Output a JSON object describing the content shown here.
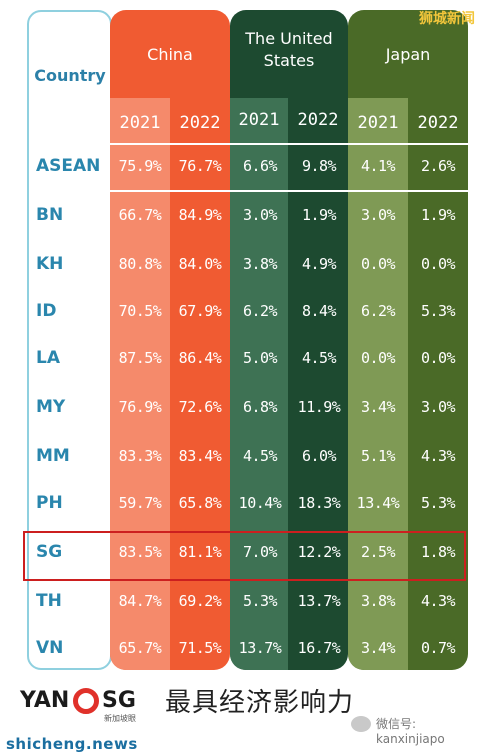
{
  "watermark": "狮城新闻",
  "table": {
    "country_header": "Country",
    "groups": [
      {
        "name_lines": [
          "China"
        ],
        "years": [
          "2021",
          "2022"
        ]
      },
      {
        "name_lines": [
          "The United",
          "States"
        ],
        "years": [
          "2021",
          "2022"
        ]
      },
      {
        "name_lines": [
          "Japan"
        ],
        "years": [
          "2021",
          "2022"
        ]
      }
    ],
    "rows": [
      {
        "country": "ASEAN",
        "values": [
          "75.9%",
          "76.7%",
          "6.6%",
          "9.8%",
          "4.1%",
          "2.6%"
        ]
      },
      {
        "country": "BN",
        "values": [
          "66.7%",
          "84.9%",
          "3.0%",
          "1.9%",
          "3.0%",
          "1.9%"
        ]
      },
      {
        "country": "KH",
        "values": [
          "80.8%",
          "84.0%",
          "3.8%",
          "4.9%",
          "0.0%",
          "0.0%"
        ]
      },
      {
        "country": "ID",
        "values": [
          "70.5%",
          "67.9%",
          "6.2%",
          "8.4%",
          "6.2%",
          "5.3%"
        ]
      },
      {
        "country": "LA",
        "values": [
          "87.5%",
          "86.4%",
          "5.0%",
          "4.5%",
          "0.0%",
          "0.0%"
        ]
      },
      {
        "country": "MY",
        "values": [
          "76.9%",
          "72.6%",
          "6.8%",
          "11.9%",
          "3.4%",
          "3.0%"
        ]
      },
      {
        "country": "MM",
        "values": [
          "83.3%",
          "83.4%",
          "4.5%",
          "6.0%",
          "5.1%",
          "4.3%"
        ]
      },
      {
        "country": "PH",
        "values": [
          "59.7%",
          "65.8%",
          "10.4%",
          "18.3%",
          "13.4%",
          "5.3%"
        ]
      },
      {
        "country": "SG",
        "values": [
          "83.5%",
          "81.1%",
          "7.0%",
          "12.2%",
          "2.5%",
          "1.8%"
        ]
      },
      {
        "country": "TH",
        "values": [
          "84.7%",
          "69.2%",
          "5.3%",
          "13.7%",
          "3.8%",
          "4.3%"
        ]
      },
      {
        "country": "VN",
        "values": [
          "65.7%",
          "71.5%",
          "13.7%",
          "16.7%",
          "3.4%",
          "0.7%"
        ]
      }
    ],
    "highlighted_row": "SG"
  },
  "footer": {
    "logo_left": "YAN",
    "logo_right": "SG",
    "logo_sub": "新加坡眼",
    "caption": "最具经济影响力",
    "wechat": "微信号: kanxinjiapo",
    "site": "shicheng.news"
  },
  "colors": {
    "china_2022": "#f05b32",
    "china_2021": "#f58a6b",
    "us_2022": "#1d4a30",
    "us_2021": "#3e7254",
    "japan_2022": "#4a6a27",
    "japan_2021": "#7f9a55",
    "country_text": "#2a86ad",
    "highlight_box": "#cc1f1f"
  },
  "icons": [
    "wechat-icon",
    "yansg-logo"
  ]
}
